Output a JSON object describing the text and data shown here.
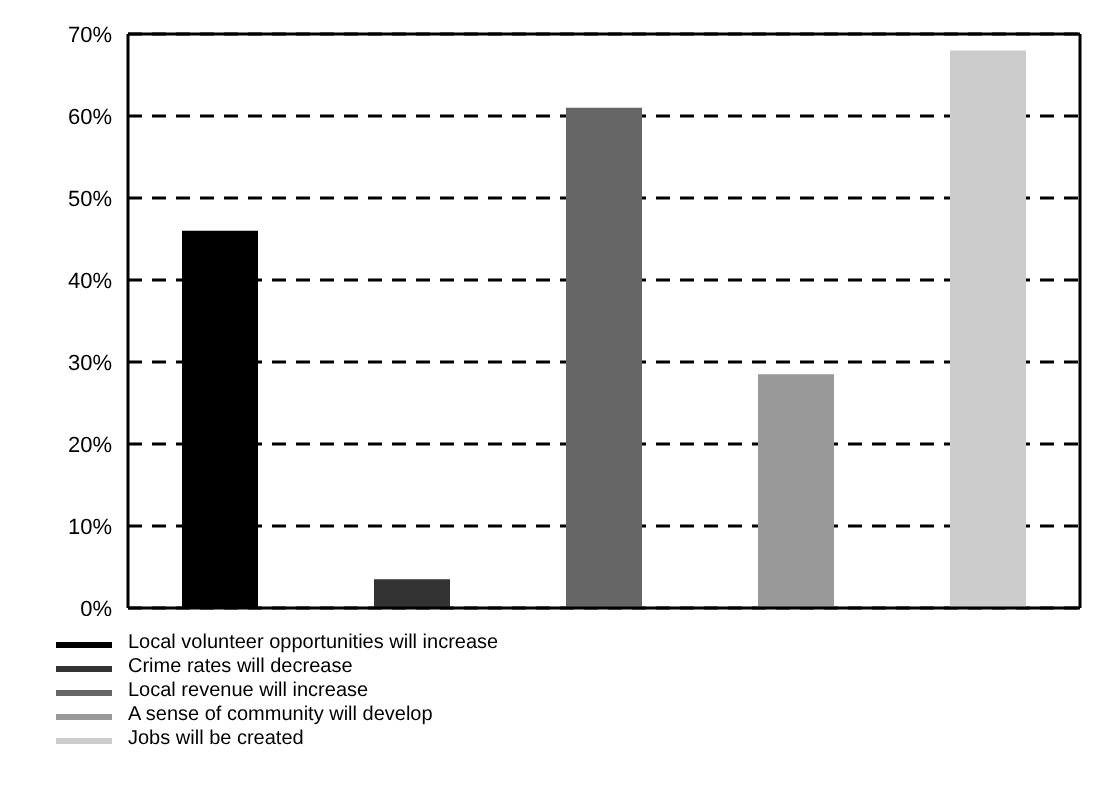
{
  "chart_data": {
    "type": "bar",
    "categories": [
      null
    ],
    "series": [
      {
        "name": "Local volunteer opportunities will increase",
        "color": "#000000",
        "values": [
          46
        ]
      },
      {
        "name": "Crime rates will decrease",
        "color": "#333333",
        "values": [
          3.5
        ]
      },
      {
        "name": "Local revenue will increase",
        "color": "#666666",
        "values": [
          61
        ]
      },
      {
        "name": "A sense of community will develop",
        "color": "#999999",
        "values": [
          28.5
        ]
      },
      {
        "name": "Jobs will be created",
        "color": "#cccccc",
        "values": [
          68
        ]
      }
    ],
    "ylim": [
      0,
      70
    ],
    "yticks": [
      {
        "value": 0,
        "label": "0%"
      },
      {
        "value": 10,
        "label": "10%"
      },
      {
        "value": 20,
        "label": "20%"
      },
      {
        "value": 30,
        "label": "30%"
      },
      {
        "value": 40,
        "label": "40%"
      },
      {
        "value": 50,
        "label": "50%"
      },
      {
        "value": 60,
        "label": "60%"
      },
      {
        "value": 70,
        "label": "70%"
      }
    ],
    "grid": "y",
    "legend": "bottom left"
  }
}
